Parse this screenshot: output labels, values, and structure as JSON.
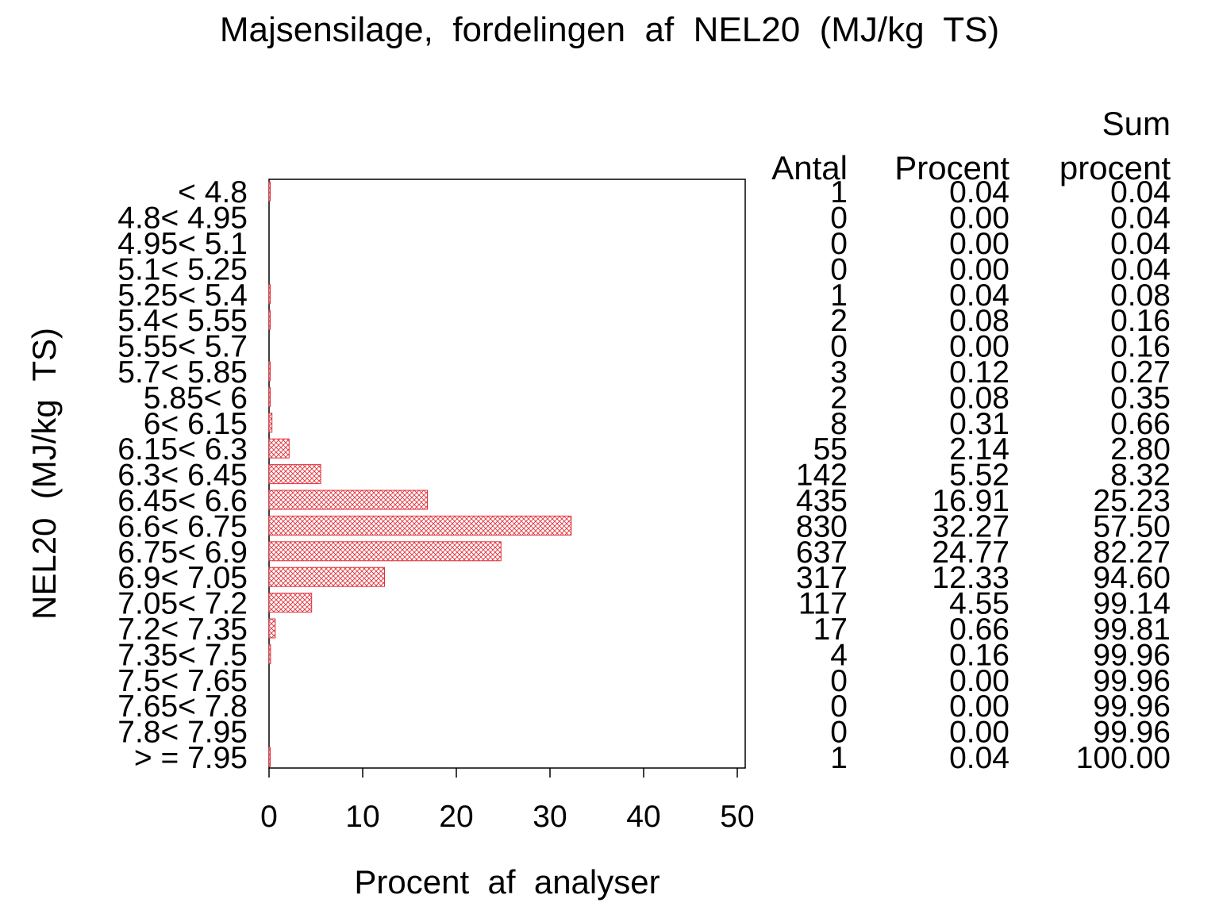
{
  "chart_data": {
    "type": "bar",
    "orientation": "horizontal",
    "title": "Majsensilage,  fordelingen  af  NEL20  (MJ/kg  TS)",
    "xlabel": "Procent  af  analyser",
    "ylabel": "NEL20  (MJ/kg  TS)",
    "xlim": [
      0,
      50
    ],
    "xticks": [
      "0",
      "10",
      "20",
      "30",
      "40",
      "50"
    ],
    "grid": false,
    "bar_fill": "crosshatch",
    "bar_color": "#e0303a",
    "categories": [
      "< 4.8",
      "4.8< 4.95",
      "4.95< 5.1",
      "5.1< 5.25",
      "5.25< 5.4",
      "5.4< 5.55",
      "5.55< 5.7",
      "5.7< 5.85",
      "5.85< 6",
      "6< 6.15",
      "6.15< 6.3",
      "6.3< 6.45",
      "6.45< 6.6",
      "6.6< 6.75",
      "6.75< 6.9",
      "6.9< 7.05",
      "7.05< 7.2",
      "7.2< 7.35",
      "7.35< 7.5",
      "7.5< 7.65",
      "7.65< 7.8",
      "7.8< 7.95",
      "> = 7.95"
    ],
    "values": [
      0.04,
      0,
      0,
      0,
      0.04,
      0.08,
      0,
      0.12,
      0.08,
      0.31,
      2.14,
      5.52,
      16.91,
      32.27,
      24.77,
      12.33,
      4.55,
      0.66,
      0.16,
      0,
      0,
      0,
      0.04
    ],
    "table": {
      "headers": {
        "antal": "Antal",
        "procent": "Procent",
        "sum_top": "Sum",
        "sum_bottom": "procent"
      },
      "antal": [
        "1",
        "0",
        "0",
        "0",
        "1",
        "2",
        "0",
        "3",
        "2",
        "8",
        "55",
        "142",
        "435",
        "830",
        "637",
        "317",
        "117",
        "17",
        "4",
        "0",
        "0",
        "0",
        "1"
      ],
      "procent": [
        "0.04",
        "0.00",
        "0.00",
        "0.00",
        "0.04",
        "0.08",
        "0.00",
        "0.12",
        "0.08",
        "0.31",
        "2.14",
        "5.52",
        "16.91",
        "32.27",
        "24.77",
        "12.33",
        "4.55",
        "0.66",
        "0.16",
        "0.00",
        "0.00",
        "0.00",
        "0.04"
      ],
      "sum_procent": [
        "0.04",
        "0.04",
        "0.04",
        "0.04",
        "0.08",
        "0.16",
        "0.16",
        "0.27",
        "0.35",
        "0.66",
        "2.80",
        "8.32",
        "25.23",
        "57.50",
        "82.27",
        "94.60",
        "99.14",
        "99.81",
        "99.96",
        "99.96",
        "99.96",
        "99.96",
        "100.00"
      ]
    }
  }
}
